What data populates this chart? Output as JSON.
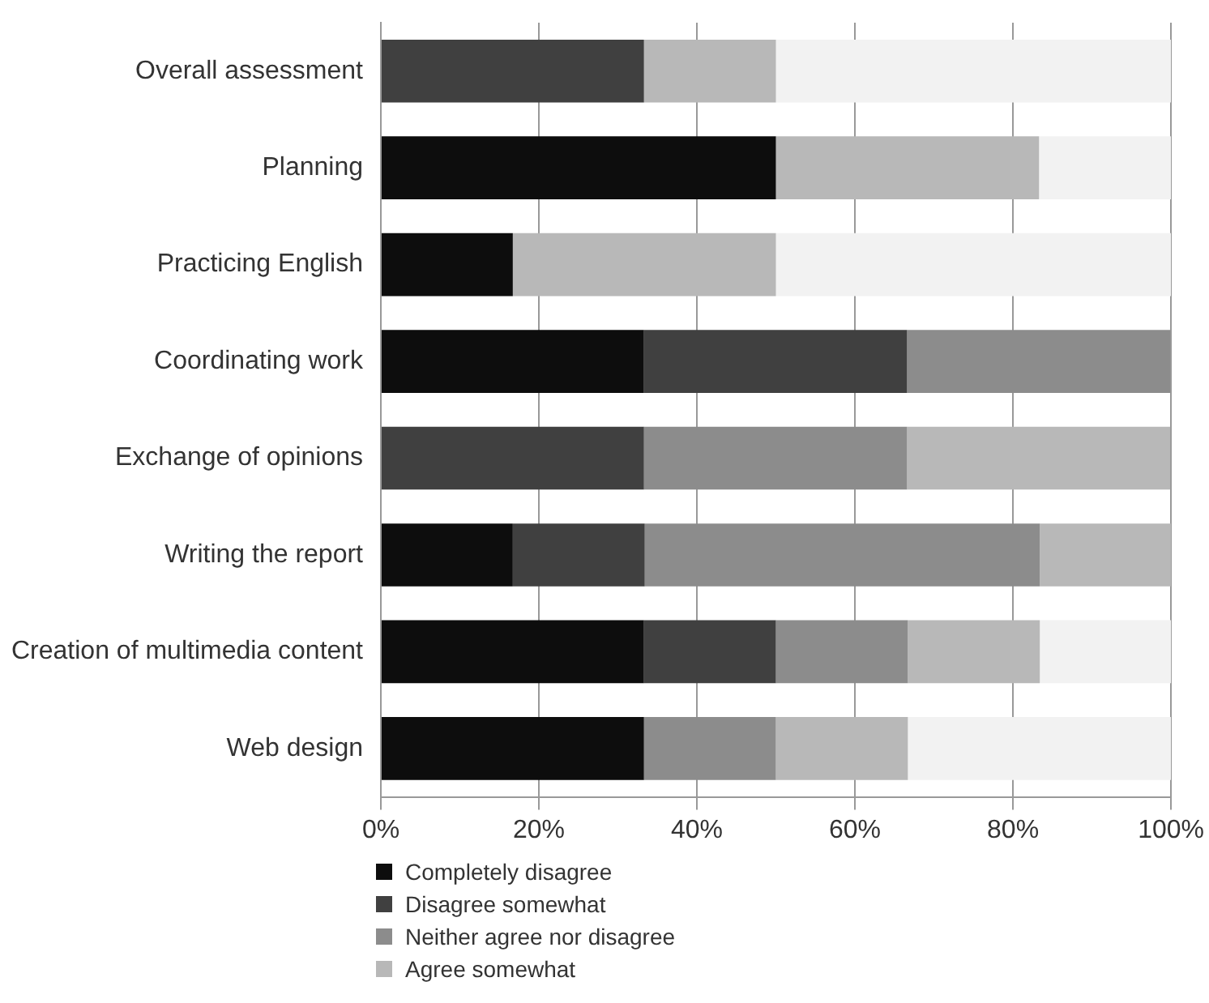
{
  "chart_data": {
    "type": "bar",
    "orientation": "horizontal",
    "stacked": true,
    "categories": [
      "Overall assessment",
      "Planning",
      "Practicing English",
      "Coordinating work",
      "Exchange of opinions",
      "Writing the report",
      "Creation of multimedia content",
      "Web design"
    ],
    "series": [
      {
        "name": "Completely disagree",
        "color": "#0d0d0d",
        "values": [
          0,
          50,
          16.7,
          33.3,
          0,
          16.7,
          33.3,
          33.3
        ]
      },
      {
        "name": "Disagree somewhat",
        "color": "#404040",
        "values": [
          33.3,
          0,
          0,
          33.3,
          33.3,
          16.7,
          16.7,
          0
        ]
      },
      {
        "name": "Neither agree nor disagree",
        "color": "#8c8c8c",
        "values": [
          0,
          0,
          0,
          33.3,
          33.3,
          50,
          16.7,
          16.7
        ]
      },
      {
        "name": "Agree somewhat",
        "color": "#b8b8b8",
        "values": [
          16.7,
          33.3,
          33.3,
          0,
          33.3,
          16.7,
          16.7,
          16.7
        ]
      },
      {
        "color": "#f2f2f2",
        "values": [
          50,
          16.7,
          50,
          0,
          0,
          0,
          16.7,
          33.3
        ]
      }
    ],
    "xlim": [
      0,
      100
    ],
    "xticks": [
      {
        "value": 0,
        "label": "0%"
      },
      {
        "value": 20,
        "label": "20%"
      },
      {
        "value": 40,
        "label": "40%"
      },
      {
        "value": 60,
        "label": "60%"
      },
      {
        "value": 80,
        "label": "80%"
      },
      {
        "value": 100,
        "label": "100%"
      }
    ],
    "grid": "x",
    "legend": "bottom"
  }
}
